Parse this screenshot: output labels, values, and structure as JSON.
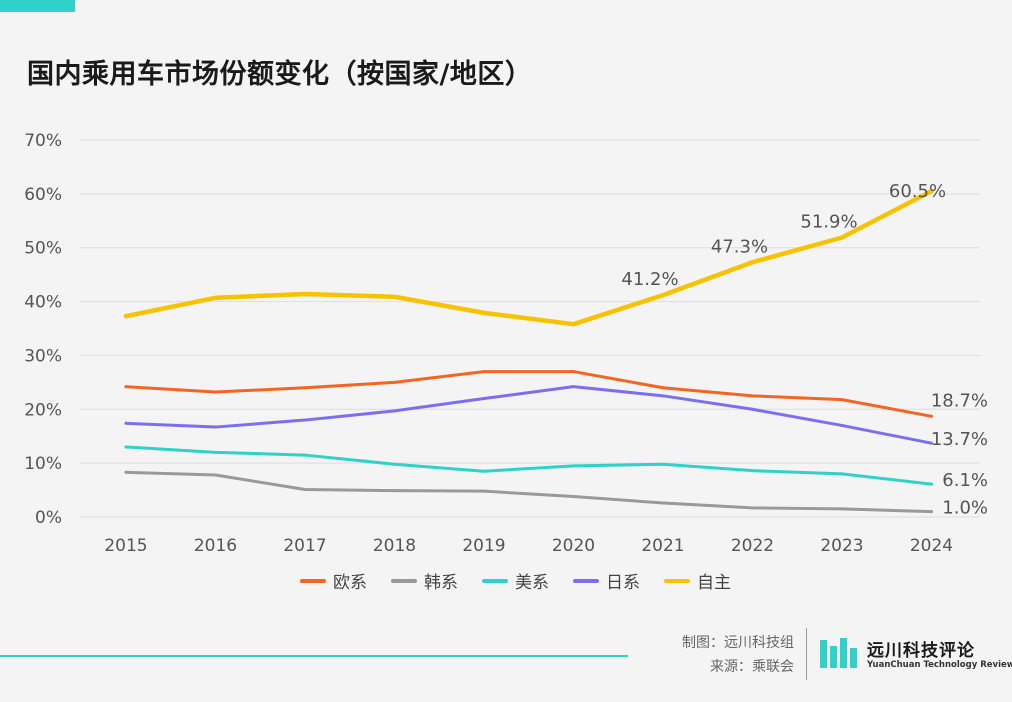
{
  "title": "国内乘用车市场份额变化（按国家/地区）",
  "colors": {
    "accent": "#2ed2c8",
    "grid": "#dddddd",
    "axis_text": "#555555",
    "label_text": "#555555"
  },
  "chart_data": {
    "type": "line",
    "title": "国内乘用车市场份额变化（按国家/地区）",
    "xlabel": "",
    "ylabel": "",
    "x": [
      "2015",
      "2016",
      "2017",
      "2018",
      "2019",
      "2020",
      "2021",
      "2022",
      "2023",
      "2024"
    ],
    "ylim": [
      0,
      70
    ],
    "yticks": [
      0,
      10,
      20,
      30,
      40,
      50,
      60,
      70
    ],
    "ytick_labels": [
      "0%",
      "10%",
      "20%",
      "30%",
      "40%",
      "50%",
      "60%",
      "70%"
    ],
    "grid": true,
    "legend": "bottom",
    "series": [
      {
        "name": "欧系",
        "color": "#f26522",
        "values": [
          24.2,
          23.2,
          24.0,
          25.0,
          27.0,
          27.0,
          24.0,
          22.5,
          21.8,
          18.7
        ],
        "labels": [
          null,
          null,
          null,
          null,
          null,
          null,
          null,
          null,
          null,
          "18.7%"
        ]
      },
      {
        "name": "韩系",
        "color": "#999999",
        "values": [
          8.3,
          7.8,
          5.1,
          4.9,
          4.8,
          3.8,
          2.6,
          1.7,
          1.5,
          1.0
        ],
        "labels": [
          null,
          null,
          null,
          null,
          null,
          null,
          null,
          null,
          null,
          "1.0%"
        ]
      },
      {
        "name": "美系",
        "color": "#2ed2c8",
        "values": [
          13.0,
          12.0,
          11.5,
          9.8,
          8.5,
          9.5,
          9.8,
          8.6,
          8.0,
          6.1
        ],
        "labels": [
          null,
          null,
          null,
          null,
          null,
          null,
          null,
          null,
          null,
          "6.1%"
        ]
      },
      {
        "name": "日系",
        "color": "#7b6ff0",
        "values": [
          17.4,
          16.7,
          18.0,
          19.7,
          22.0,
          24.2,
          22.5,
          20.0,
          17.0,
          13.7
        ],
        "labels": [
          null,
          null,
          null,
          null,
          null,
          null,
          null,
          null,
          null,
          "13.7%"
        ]
      },
      {
        "name": "自主",
        "color": "#f7c200",
        "values": [
          37.3,
          40.7,
          41.4,
          40.9,
          37.9,
          35.8,
          41.2,
          47.3,
          51.9,
          60.5
        ],
        "labels": [
          null,
          null,
          null,
          null,
          null,
          null,
          "41.2%",
          "47.3%",
          "51.9%",
          "60.5%"
        ]
      }
    ]
  },
  "footer": {
    "credit_maker_label": "制图：",
    "credit_maker": "远川科技组",
    "credit_source_label": "来源：",
    "credit_source": "乘联会",
    "brand_name": "远川科技评论",
    "brand_subtitle": "YuanChuan Technology Review"
  }
}
